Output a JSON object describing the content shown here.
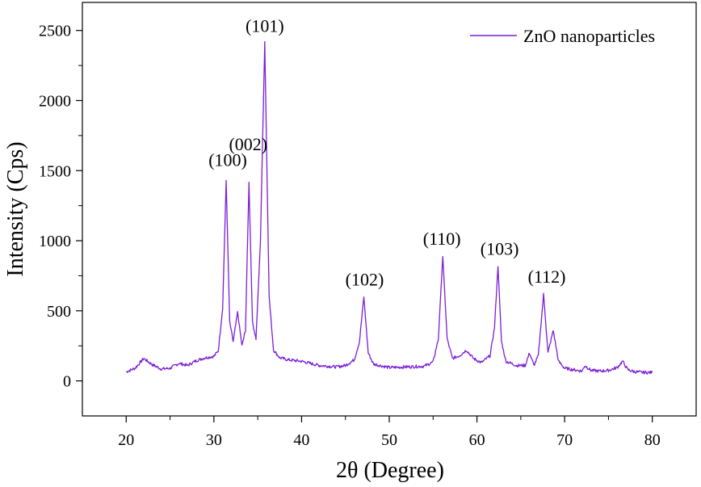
{
  "chart_data": {
    "type": "line",
    "title": "",
    "xlabel": "2θ (Degree)",
    "ylabel": "Intensity (Cps)",
    "xlim": [
      15,
      85
    ],
    "ylim": [
      -250,
      2700
    ],
    "xticks": [
      20,
      30,
      40,
      50,
      60,
      70,
      80
    ],
    "yticks": [
      0,
      500,
      1000,
      1500,
      2000,
      2500
    ],
    "grid": false,
    "legend": {
      "position": "top-right",
      "entries": [
        "ZnO nanoparticles"
      ]
    },
    "series": [
      {
        "name": "ZnO nanoparticles",
        "color": "#7a1fd6",
        "x": [
          20,
          21,
          22,
          23,
          24,
          25,
          26,
          27,
          28,
          29,
          30,
          30.5,
          31,
          31.4,
          31.8,
          32.2,
          32.7,
          33.2,
          33.6,
          34.0,
          34.4,
          34.8,
          35.3,
          35.8,
          36.3,
          36.8,
          37.5,
          38.5,
          40,
          42,
          44,
          45,
          46,
          46.6,
          47.1,
          47.6,
          48.2,
          50,
          52,
          54,
          55,
          55.6,
          56.1,
          56.6,
          57.2,
          58.0,
          58.8,
          59.6,
          60.5,
          61.5,
          62.0,
          62.4,
          62.8,
          63.3,
          64.5,
          65.5,
          66.0,
          66.5,
          67.0,
          67.6,
          68.1,
          68.7,
          69.3,
          70,
          71,
          72,
          72.3,
          73,
          74,
          75,
          76,
          76.6,
          77.2,
          78,
          79,
          80
        ],
        "y": [
          65,
          90,
          160,
          115,
          85,
          90,
          125,
          110,
          145,
          165,
          175,
          215,
          520,
          1430,
          420,
          280,
          490,
          250,
          360,
          1415,
          420,
          300,
          980,
          2420,
          600,
          220,
          165,
          150,
          140,
          110,
          100,
          110,
          150,
          280,
          600,
          200,
          120,
          95,
          100,
          105,
          135,
          300,
          890,
          300,
          160,
          180,
          220,
          160,
          130,
          180,
          380,
          820,
          280,
          140,
          110,
          110,
          200,
          110,
          180,
          620,
          200,
          360,
          140,
          90,
          80,
          70,
          110,
          75,
          70,
          75,
          95,
          140,
          80,
          65,
          60,
          60
        ]
      }
    ],
    "annotations": [
      {
        "text": "(100)",
        "x": 31.4,
        "y": 1430
      },
      {
        "text": "(002)",
        "x": 34.0,
        "y": 1415
      },
      {
        "text": "(101)",
        "x": 35.8,
        "y": 2420
      },
      {
        "text": "(102)",
        "x": 47.1,
        "y": 600
      },
      {
        "text": "(110)",
        "x": 56.1,
        "y": 890
      },
      {
        "text": "(103)",
        "x": 62.4,
        "y": 820
      },
      {
        "text": "(112)",
        "x": 67.6,
        "y": 620
      }
    ]
  }
}
